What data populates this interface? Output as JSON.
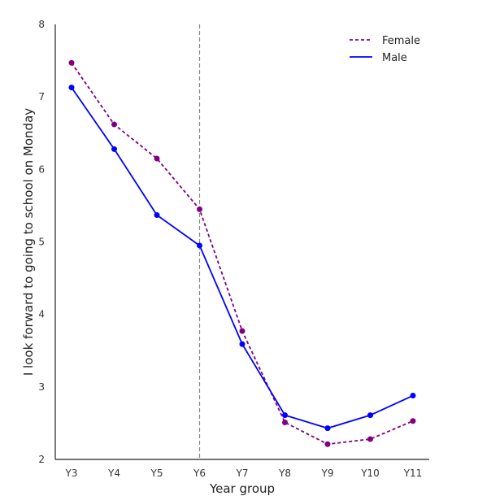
{
  "chart_data": {
    "type": "line",
    "title": "",
    "xlabel": "Year group",
    "ylabel": "I look forward to going to school on Monday",
    "categories": [
      "Y3",
      "Y4",
      "Y5",
      "Y6",
      "Y7",
      "Y8",
      "Y9",
      "Y10",
      "Y11"
    ],
    "ylim": [
      2,
      8
    ],
    "yticks": [
      2,
      3,
      4,
      5,
      6,
      7,
      8
    ],
    "grid": false,
    "legend_position": "top-right",
    "reference_line": {
      "orientation": "vertical",
      "x": "Y6",
      "style": "dashed",
      "color": "#888888"
    },
    "series": [
      {
        "name": "Female",
        "line_style": "dashed",
        "color": "#800080",
        "values": [
          7.47,
          6.62,
          6.15,
          5.45,
          3.77,
          2.51,
          2.21,
          2.28,
          2.53
        ]
      },
      {
        "name": "Male",
        "line_style": "solid",
        "color": "#0000ff",
        "values": [
          7.13,
          6.28,
          5.37,
          4.95,
          3.59,
          2.61,
          2.43,
          2.61,
          2.88
        ]
      }
    ]
  }
}
